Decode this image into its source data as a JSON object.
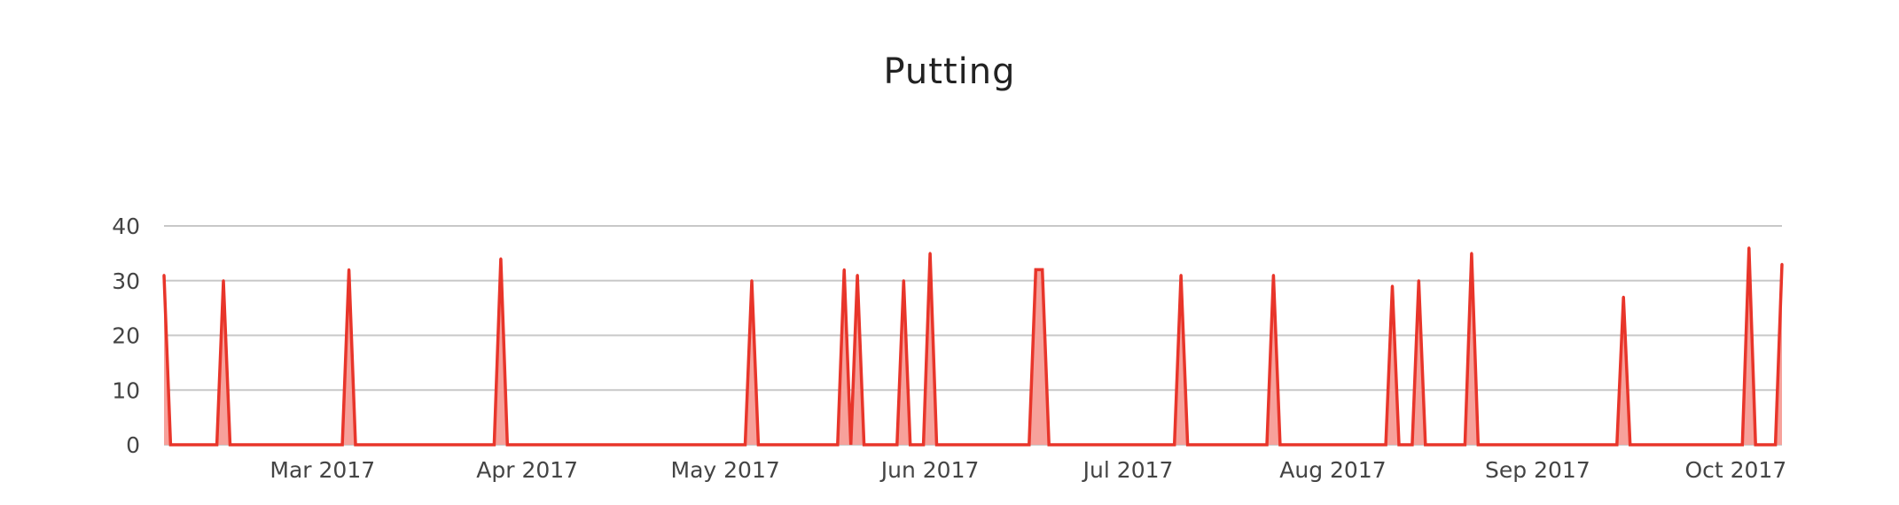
{
  "chart_data": {
    "type": "area",
    "title": "Putting",
    "xlabel": "",
    "ylabel": "",
    "ylim": [
      0,
      40
    ],
    "yticks": [
      "0",
      "10",
      "20",
      "30",
      "40"
    ],
    "xlim": [
      "2017-02-05",
      "2017-10-08"
    ],
    "xticks": [
      {
        "date": "2017-03-01",
        "label": "Mar 2017"
      },
      {
        "date": "2017-04-01",
        "label": "Apr 2017"
      },
      {
        "date": "2017-05-01",
        "label": "May 2017"
      },
      {
        "date": "2017-06-01",
        "label": "Jun 2017"
      },
      {
        "date": "2017-07-01",
        "label": "Jul 2017"
      },
      {
        "date": "2017-08-01",
        "label": "Aug 2017"
      },
      {
        "date": "2017-09-01",
        "label": "Sep 2017"
      },
      {
        "date": "2017-10-01",
        "label": "Oct 2017"
      }
    ],
    "grid": true,
    "legend": "none",
    "line_color": "#e8352a",
    "fill_color": "#f7a19b",
    "series": [
      {
        "points": [
          {
            "x": "2017-02-05",
            "y": 31
          },
          {
            "x": "2017-02-14",
            "y": 30
          },
          {
            "x": "2017-03-05",
            "y": 32
          },
          {
            "x": "2017-03-28",
            "y": 34
          },
          {
            "x": "2017-05-05",
            "y": 30
          },
          {
            "x": "2017-05-19",
            "y": 32
          },
          {
            "x": "2017-05-21",
            "y": 31
          },
          {
            "x": "2017-05-28",
            "y": 30
          },
          {
            "x": "2017-06-01",
            "y": 35
          },
          {
            "x": "2017-06-17",
            "y": 32
          },
          {
            "x": "2017-06-18",
            "y": 32
          },
          {
            "x": "2017-07-09",
            "y": 31
          },
          {
            "x": "2017-07-23",
            "y": 31
          },
          {
            "x": "2017-08-10",
            "y": 29
          },
          {
            "x": "2017-08-14",
            "y": 30
          },
          {
            "x": "2017-08-22",
            "y": 35
          },
          {
            "x": "2017-09-14",
            "y": 27
          },
          {
            "x": "2017-10-03",
            "y": 36
          },
          {
            "x": "2017-10-08",
            "y": 33
          }
        ]
      }
    ]
  }
}
